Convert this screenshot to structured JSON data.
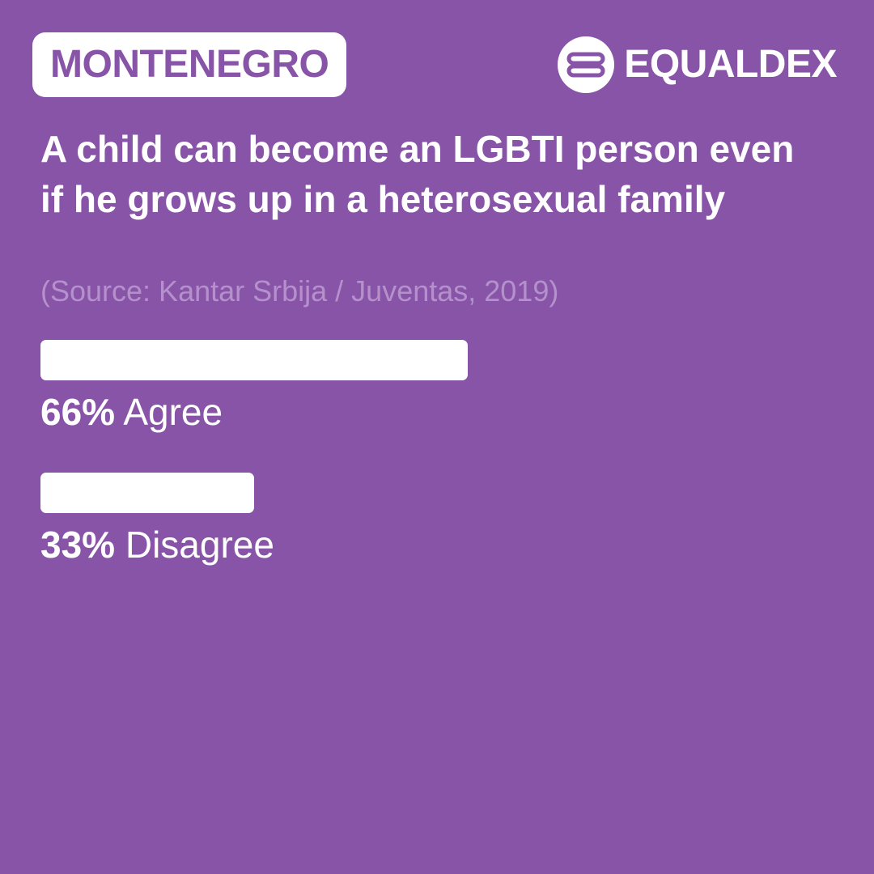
{
  "header": {
    "country": "MONTENEGRO",
    "brand": "EQUALDEX"
  },
  "question": "A child can become an LGBTI person even if he grows up in a heterosexual family",
  "source": "(Source: Kantar Srbija / Juventas, 2019)",
  "colors": {
    "background": "#8854a8",
    "bar": "#ffffff",
    "source_text": "#b591cb"
  },
  "icons": {
    "brand_logo": "equaldex-logo"
  },
  "chart_data": {
    "type": "bar",
    "orientation": "horizontal",
    "title": "A child can become an LGBTI person even if he grows up in a heterosexual family",
    "categories": [
      "Agree",
      "Disagree"
    ],
    "values": [
      66,
      33
    ],
    "value_labels": [
      "66%",
      "33%"
    ],
    "unit": "%",
    "xlim": [
      0,
      100
    ],
    "grid": false
  }
}
